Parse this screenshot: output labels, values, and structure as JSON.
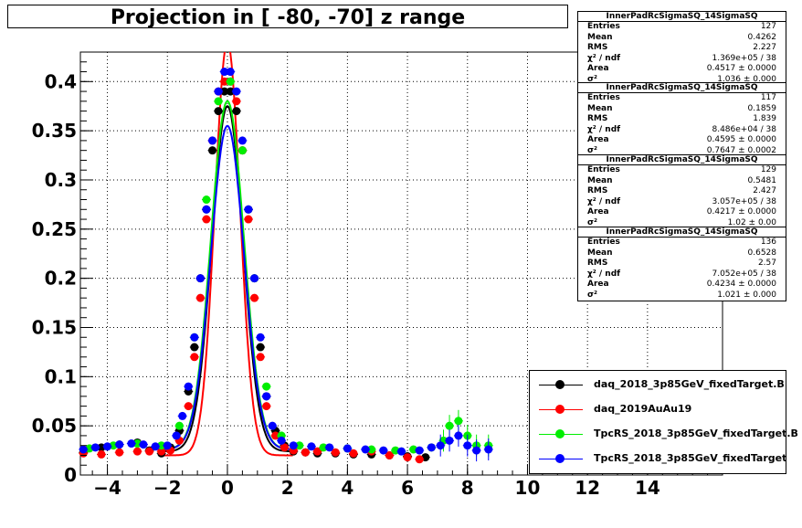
{
  "title": "Projection in [ -80, -70] z range",
  "colors": {
    "black": "#000000",
    "red": "#ff0000",
    "green": "#00ee00",
    "blue": "#0000ff"
  },
  "stats": [
    {
      "name": "InnerPadRcSigmaSQ_14SigmaSQ",
      "rows": [
        {
          "k": "Entries",
          "v": "127"
        },
        {
          "k": "Mean",
          "v": "0.4262"
        },
        {
          "k": "RMS",
          "v": "2.227"
        },
        {
          "k": "χ² / ndf",
          "v": "1.369e+05 / 38"
        },
        {
          "k": "Area",
          "v": "0.4517 ± 0.0000"
        },
        {
          "k": "σ²",
          "v": "1.036 ± 0.000"
        }
      ]
    },
    {
      "name": "InnerPadRcSigmaSQ_14SigmaSQ",
      "rows": [
        {
          "k": "Entries",
          "v": "117"
        },
        {
          "k": "Mean",
          "v": "0.1859"
        },
        {
          "k": "RMS",
          "v": "1.839"
        },
        {
          "k": "χ² / ndf",
          "v": "8.486e+04 / 38"
        },
        {
          "k": "Area",
          "v": "0.4595 ± 0.0000"
        },
        {
          "k": "σ²",
          "v": "0.7647 ± 0.0002"
        }
      ]
    },
    {
      "name": "InnerPadRcSigmaSQ_14SigmaSQ",
      "rows": [
        {
          "k": "Entries",
          "v": "129"
        },
        {
          "k": "Mean",
          "v": "0.5481"
        },
        {
          "k": "RMS",
          "v": "2.427"
        },
        {
          "k": "χ² / ndf",
          "v": "3.057e+05 / 38"
        },
        {
          "k": "Area",
          "v": "0.4217 ± 0.0000"
        },
        {
          "k": "σ²",
          "v": "1.02 ± 0.00"
        }
      ]
    },
    {
      "name": "InnerPadRcSigmaSQ_14SigmaSQ",
      "rows": [
        {
          "k": "Entries",
          "v": "136"
        },
        {
          "k": "Mean",
          "v": "0.6528"
        },
        {
          "k": "RMS",
          "v": "2.57"
        },
        {
          "k": "χ² / ndf",
          "v": "7.052e+05 / 38"
        },
        {
          "k": "Area",
          "v": "0.4234 ± 0.0000"
        },
        {
          "k": "σ²",
          "v": "1.021 ± 0.000"
        }
      ]
    }
  ],
  "legend": [
    {
      "label": "daq_2018_3p85GeV_fixedTarget.B",
      "color": "#000000"
    },
    {
      "label": "daq_2019AuAu19",
      "color": "#ff0000"
    },
    {
      "label": "TpcRS_2018_3p85GeV_fixedTarget.B",
      "color": "#00ee00"
    },
    {
      "label": "TpcRS_2018_3p85GeV_fixedTarget",
      "color": "#0000ff"
    }
  ],
  "chart_data": {
    "type": "scatter",
    "title": "Projection in [ -80, -70] z range",
    "xlabel": "",
    "ylabel": "",
    "xlim": [
      -4.9,
      16.5
    ],
    "ylim": [
      0,
      0.43
    ],
    "grid": true,
    "legend_position": "bottom-right",
    "x_ticks": [
      -4,
      -2,
      0,
      2,
      4,
      6,
      8,
      10,
      12,
      14
    ],
    "y_ticks": [
      0,
      0.05,
      0.1,
      0.15,
      0.2,
      0.25,
      0.3,
      0.35,
      0.4
    ],
    "x_tick_labels": [
      "−4",
      "−2",
      "0",
      "2",
      "4",
      "6",
      "8",
      "10",
      "12",
      "14"
    ],
    "y_tick_labels": [
      "0",
      "0.05",
      "0.1",
      "0.15",
      "0.2",
      "0.25",
      "0.3",
      "0.35",
      "0.4"
    ],
    "series": [
      {
        "name": "daq_2018_3p85GeV_fixedTarget.B",
        "color": "#000000",
        "fit": {
          "amp": 0.375,
          "sigma": 0.52,
          "base": 0.024
        },
        "points": [
          [
            -4.8,
            0.023
          ],
          [
            -4.2,
            0.028
          ],
          [
            -3.6,
            0.031
          ],
          [
            -3.0,
            0.033
          ],
          [
            -2.6,
            0.025
          ],
          [
            -2.2,
            0.022
          ],
          [
            -1.9,
            0.028
          ],
          [
            -1.6,
            0.045
          ],
          [
            -1.3,
            0.085
          ],
          [
            -1.1,
            0.13
          ],
          [
            -0.9,
            0.2
          ],
          [
            -0.7,
            0.27
          ],
          [
            -0.5,
            0.33
          ],
          [
            -0.3,
            0.37
          ],
          [
            -0.1,
            0.39
          ],
          [
            0.1,
            0.39
          ],
          [
            0.3,
            0.37
          ],
          [
            0.5,
            0.33
          ],
          [
            0.7,
            0.27
          ],
          [
            0.9,
            0.2
          ],
          [
            1.1,
            0.13
          ],
          [
            1.3,
            0.08
          ],
          [
            1.6,
            0.045
          ],
          [
            1.9,
            0.03
          ],
          [
            2.2,
            0.024
          ],
          [
            2.6,
            0.023
          ],
          [
            3.0,
            0.022
          ],
          [
            3.6,
            0.022
          ],
          [
            4.2,
            0.021
          ],
          [
            4.8,
            0.021
          ],
          [
            5.4,
            0.02
          ],
          [
            6.0,
            0.019
          ],
          [
            6.6,
            0.018
          ]
        ]
      },
      {
        "name": "daq_2019AuAu19",
        "color": "#ff0000",
        "fit": {
          "amp": 0.44,
          "sigma": 0.42,
          "base": 0.02
        },
        "points": [
          [
            -4.8,
            0.022
          ],
          [
            -4.2,
            0.021
          ],
          [
            -3.6,
            0.023
          ],
          [
            -3.0,
            0.024
          ],
          [
            -2.6,
            0.024
          ],
          [
            -2.2,
            0.024
          ],
          [
            -1.9,
            0.025
          ],
          [
            -1.6,
            0.035
          ],
          [
            -1.3,
            0.07
          ],
          [
            -1.1,
            0.12
          ],
          [
            -0.9,
            0.18
          ],
          [
            -0.7,
            0.26
          ],
          [
            -0.5,
            0.34
          ],
          [
            -0.3,
            0.39
          ],
          [
            -0.1,
            0.4
          ],
          [
            0.1,
            0.4
          ],
          [
            0.3,
            0.38
          ],
          [
            0.5,
            0.33
          ],
          [
            0.7,
            0.26
          ],
          [
            0.9,
            0.18
          ],
          [
            1.1,
            0.12
          ],
          [
            1.3,
            0.07
          ],
          [
            1.6,
            0.04
          ],
          [
            1.9,
            0.028
          ],
          [
            2.2,
            0.025
          ],
          [
            2.6,
            0.023
          ],
          [
            3.0,
            0.024
          ],
          [
            3.6,
            0.023
          ],
          [
            4.2,
            0.022
          ],
          [
            4.8,
            0.024
          ],
          [
            5.4,
            0.02
          ],
          [
            6.0,
            0.018
          ],
          [
            6.4,
            0.016
          ]
        ]
      },
      {
        "name": "TpcRS_2018_3p85GeV_fixedTarget.B",
        "color": "#00ee00",
        "fit": {
          "amp": 0.38,
          "sigma": 0.55,
          "base": 0.026
        },
        "points": [
          [
            -4.6,
            0.027
          ],
          [
            -3.8,
            0.03
          ],
          [
            -3.0,
            0.032
          ],
          [
            -2.2,
            0.03
          ],
          [
            -1.6,
            0.05
          ],
          [
            -1.1,
            0.14
          ],
          [
            -0.7,
            0.28
          ],
          [
            -0.3,
            0.38
          ],
          [
            0.1,
            0.4
          ],
          [
            0.5,
            0.33
          ],
          [
            0.9,
            0.2
          ],
          [
            1.3,
            0.09
          ],
          [
            1.8,
            0.04
          ],
          [
            2.4,
            0.03
          ],
          [
            3.2,
            0.028
          ],
          [
            4.0,
            0.027
          ],
          [
            4.8,
            0.026
          ],
          [
            5.6,
            0.025
          ],
          [
            6.2,
            0.026
          ],
          [
            6.8,
            0.028
          ],
          [
            7.2,
            0.035
          ],
          [
            7.4,
            0.05
          ],
          [
            7.7,
            0.055
          ],
          [
            8.0,
            0.04
          ],
          [
            8.3,
            0.03
          ],
          [
            8.7,
            0.03
          ]
        ]
      },
      {
        "name": "TpcRS_2018_3p85GeV_fixedTarget",
        "color": "#0000ff",
        "fit": {
          "amp": 0.355,
          "sigma": 0.55,
          "base": 0.026
        },
        "points": [
          [
            -4.8,
            0.026
          ],
          [
            -4.4,
            0.028
          ],
          [
            -4.0,
            0.029
          ],
          [
            -3.6,
            0.031
          ],
          [
            -3.2,
            0.032
          ],
          [
            -2.8,
            0.031
          ],
          [
            -2.4,
            0.029
          ],
          [
            -2.0,
            0.03
          ],
          [
            -1.7,
            0.04
          ],
          [
            -1.5,
            0.06
          ],
          [
            -1.3,
            0.09
          ],
          [
            -1.1,
            0.14
          ],
          [
            -0.9,
            0.2
          ],
          [
            -0.7,
            0.27
          ],
          [
            -0.5,
            0.34
          ],
          [
            -0.3,
            0.39
          ],
          [
            -0.1,
            0.41
          ],
          [
            0.1,
            0.41
          ],
          [
            0.3,
            0.39
          ],
          [
            0.5,
            0.34
          ],
          [
            0.7,
            0.27
          ],
          [
            0.9,
            0.2
          ],
          [
            1.1,
            0.14
          ],
          [
            1.3,
            0.08
          ],
          [
            1.5,
            0.05
          ],
          [
            1.8,
            0.035
          ],
          [
            2.2,
            0.03
          ],
          [
            2.8,
            0.029
          ],
          [
            3.4,
            0.028
          ],
          [
            4.0,
            0.027
          ],
          [
            4.6,
            0.026
          ],
          [
            5.2,
            0.025
          ],
          [
            5.8,
            0.024
          ],
          [
            6.4,
            0.025
          ],
          [
            6.8,
            0.028
          ],
          [
            7.1,
            0.03
          ],
          [
            7.4,
            0.035
          ],
          [
            7.7,
            0.04
          ],
          [
            8.0,
            0.03
          ],
          [
            8.3,
            0.025
          ],
          [
            8.7,
            0.026
          ]
        ]
      }
    ]
  }
}
